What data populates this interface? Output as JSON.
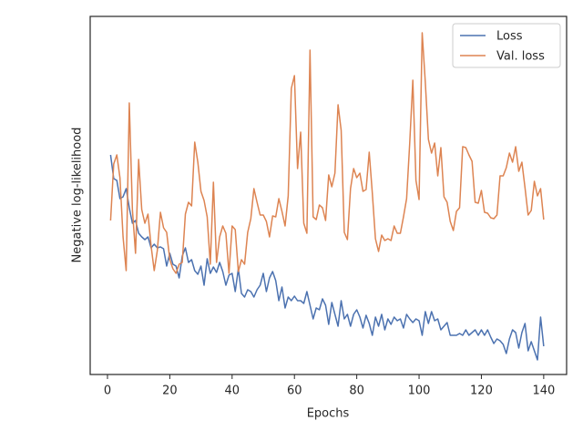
{
  "chart_data": {
    "type": "line",
    "xlabel": "Epochs",
    "ylabel": "Negative log-likelihood",
    "x": [
      1,
      2,
      3,
      4,
      5,
      6,
      7,
      8,
      9,
      10,
      11,
      12,
      13,
      14,
      15,
      16,
      17,
      18,
      19,
      20,
      21,
      22,
      23,
      24,
      25,
      26,
      27,
      28,
      29,
      30,
      31,
      32,
      33,
      34,
      35,
      36,
      37,
      38,
      39,
      40,
      41,
      42,
      43,
      44,
      45,
      46,
      47,
      48,
      49,
      50,
      51,
      52,
      53,
      54,
      55,
      56,
      57,
      58,
      59,
      60,
      61,
      62,
      63,
      64,
      65,
      66,
      67,
      68,
      69,
      70,
      71,
      72,
      73,
      74,
      75,
      76,
      77,
      78,
      79,
      80,
      81,
      82,
      83,
      84,
      85,
      86,
      87,
      88,
      89,
      90,
      91,
      92,
      93,
      94,
      95,
      96,
      97,
      98,
      99,
      100,
      101,
      102,
      103,
      104,
      105,
      106,
      107,
      108,
      109,
      110,
      111,
      112,
      113,
      114,
      115,
      116,
      117,
      118,
      119,
      120,
      121,
      122,
      123,
      124,
      125,
      126,
      127,
      128,
      129,
      130,
      131,
      132,
      133,
      134,
      135,
      136,
      137,
      138,
      139,
      140
    ],
    "series": [
      {
        "name": "Loss",
        "color": "#4c72b0",
        "values": [
          241,
          215,
          213,
          193,
          195,
          204,
          183,
          166,
          169,
          155,
          151,
          148,
          151,
          139,
          143,
          139,
          140,
          138,
          119,
          133,
          121,
          119,
          106,
          130,
          139,
          123,
          126,
          114,
          110,
          119,
          98,
          127,
          111,
          118,
          112,
          123,
          113,
          98,
          109,
          111,
          91,
          116,
          89,
          85,
          93,
          91,
          85,
          93,
          98,
          111,
          91,
          106,
          113,
          103,
          81,
          96,
          73,
          85,
          81,
          86,
          81,
          81,
          78,
          91,
          76,
          61,
          73,
          71,
          83,
          76,
          55,
          79,
          66,
          53,
          81,
          61,
          66,
          53,
          66,
          71,
          63,
          51,
          65,
          56,
          43,
          63,
          53,
          66,
          49,
          61,
          55,
          63,
          59,
          61,
          51,
          66,
          61,
          57,
          61,
          59,
          43,
          69,
          56,
          69,
          59,
          61,
          49,
          53,
          57,
          43,
          43,
          43,
          45,
          43,
          49,
          43,
          46,
          49,
          43,
          49,
          43,
          49,
          41,
          34,
          39,
          37,
          33,
          23,
          39,
          49,
          46,
          29,
          46,
          56,
          26,
          36,
          26,
          16,
          63,
          31
        ]
      },
      {
        "name": "Val. loss",
        "color": "#dd8452",
        "values": [
          169,
          231,
          241,
          216,
          151,
          114,
          298,
          181,
          133,
          236,
          181,
          166,
          176,
          141,
          114,
          136,
          178,
          161,
          156,
          126,
          116,
          111,
          121,
          123,
          176,
          189,
          185,
          255,
          233,
          201,
          191,
          173,
          121,
          211,
          123,
          151,
          163,
          155,
          111,
          163,
          159,
          113,
          126,
          121,
          156,
          171,
          204,
          189,
          175,
          175,
          168,
          151,
          174,
          173,
          193,
          179,
          163,
          196,
          314,
          328,
          226,
          266,
          166,
          155,
          356,
          173,
          170,
          186,
          183,
          169,
          219,
          206,
          221,
          296,
          268,
          156,
          148,
          204,
          226,
          216,
          221,
          201,
          203,
          244,
          199,
          149,
          135,
          153,
          147,
          149,
          147,
          163,
          155,
          155,
          173,
          193,
          254,
          323,
          213,
          192,
          375,
          321,
          258,
          243,
          254,
          218,
          249,
          195,
          189,
          168,
          158,
          179,
          183,
          250,
          249,
          241,
          234,
          189,
          188,
          202,
          178,
          177,
          172,
          171,
          175,
          218,
          218,
          227,
          243,
          233,
          250,
          223,
          233,
          205,
          175,
          180,
          212,
          196,
          204,
          170
        ]
      }
    ],
    "xlim": [
      -5.55,
      147.35
    ],
    "xticks": [
      0,
      20,
      40,
      60,
      80,
      100,
      120,
      140
    ],
    "ylim": [
      0,
      393
    ],
    "legend": "upper right",
    "grid": false
  }
}
